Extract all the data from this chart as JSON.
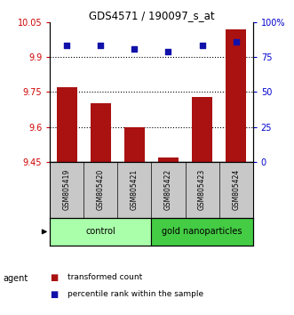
{
  "title": "GDS4571 / 190097_s_at",
  "samples": [
    "GSM805419",
    "GSM805420",
    "GSM805421",
    "GSM805422",
    "GSM805423",
    "GSM805424"
  ],
  "bar_values": [
    9.77,
    9.7,
    9.6,
    9.47,
    9.73,
    10.02
  ],
  "percentile_values": [
    83,
    83,
    81,
    79,
    83,
    86
  ],
  "ylim_left": [
    9.45,
    10.05
  ],
  "ylim_right": [
    0,
    100
  ],
  "yticks_left": [
    9.45,
    9.6,
    9.75,
    9.9,
    10.05
  ],
  "ytick_labels_left": [
    "9.45",
    "9.6",
    "9.75",
    "9.9",
    "10.05"
  ],
  "yticks_right": [
    0,
    25,
    50,
    75,
    100
  ],
  "ytick_labels_right": [
    "0",
    "25",
    "50",
    "75",
    "100%"
  ],
  "hlines": [
    9.6,
    9.75,
    9.9
  ],
  "bar_color": "#AA1111",
  "dot_color": "#1111AA",
  "bar_baseline": 9.45,
  "groups": [
    {
      "label": "control",
      "indices": [
        0,
        1,
        2
      ],
      "color": "#AAFFAA"
    },
    {
      "label": "gold nanoparticles",
      "indices": [
        3,
        4,
        5
      ],
      "color": "#44CC44"
    }
  ],
  "agent_label": "agent",
  "legend_bar_label": "transformed count",
  "legend_dot_label": "percentile rank within the sample",
  "left_tick_color": "#CC0000",
  "right_tick_color": "#0000CC",
  "title_color": "black",
  "grid_color": "black",
  "panel_bg": "#C8C8C8",
  "figsize": [
    3.31,
    3.54
  ],
  "dpi": 100
}
